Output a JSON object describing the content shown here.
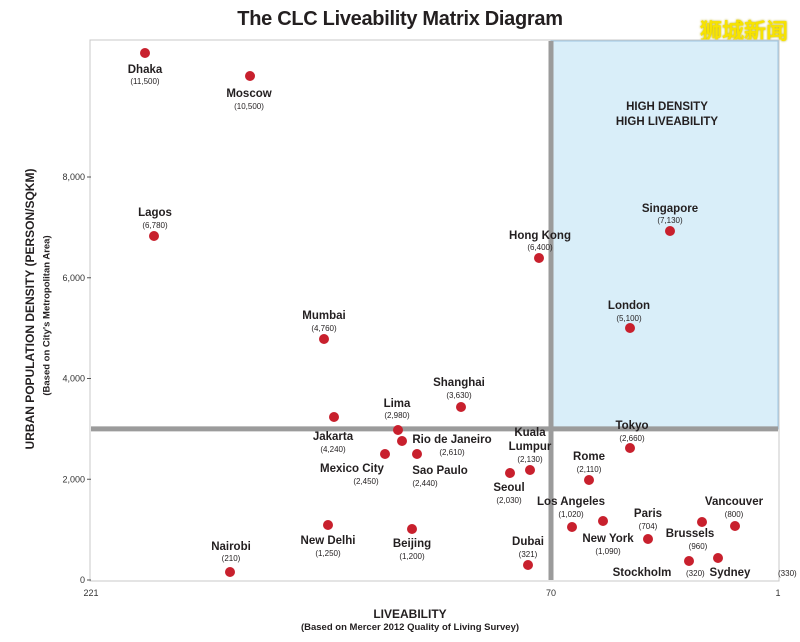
{
  "watermark": "狮城新闻",
  "chart_data": {
    "type": "scatter",
    "title": "The CLC Liveability Matrix Diagram",
    "ylabel": "URBAN POPULATION DENSITY (PERSON/SQKM)",
    "ylabel_sub": "(Based on City's Metropolitan Area)",
    "xlabel": "LIVEABILITY",
    "xlabel_sub": "(Based on Mercer 2012 Quality of Living Survey)",
    "x_axis": {
      "scale": "rank",
      "reversed": true,
      "range": [
        221,
        1
      ],
      "ticks": [
        "221",
        "70",
        "1"
      ]
    },
    "y_axis": {
      "range": [
        0,
        10700
      ],
      "ticks": [
        "0",
        "2,000",
        "4,000",
        "6,000",
        "8,000"
      ]
    },
    "quadrant_label": [
      "HIGH DENSITY",
      "HIGH LIVEABILITY"
    ],
    "divider": {
      "x_rank": 70,
      "y_density": 3000
    },
    "colors": {
      "point": "#c8202d",
      "quadrant": "#d9eef9",
      "divider": "#9b9b9b"
    },
    "points": [
      {
        "name": "Dhaka",
        "value": "(11,500)"
      },
      {
        "name": "Moscow",
        "value": "(10,500)"
      },
      {
        "name": "Lagos",
        "value": "(6,780)"
      },
      {
        "name": "Mumbai",
        "value": "(4,760)"
      },
      {
        "name": "Shanghai",
        "value": "(3,630)"
      },
      {
        "name": "Lima",
        "value": "(2,980)"
      },
      {
        "name": "Jakarta",
        "value": "(4,240)"
      },
      {
        "name": "Rio de Janeiro",
        "value": "(2,610)"
      },
      {
        "name": "Mexico City",
        "value": "(2,450)"
      },
      {
        "name": "Sao Paulo",
        "value": "(2,440)"
      },
      {
        "name": "Hong Kong",
        "value": "(6,400)"
      },
      {
        "name": "Singapore",
        "value": "(7,130)"
      },
      {
        "name": "London",
        "value": "(5,100)"
      },
      {
        "name": "Kuala Lumpur",
        "value": "(2,130)"
      },
      {
        "name": "Seoul",
        "value": "(2,030)"
      },
      {
        "name": "Tokyo",
        "value": "(2,660)"
      },
      {
        "name": "Rome",
        "value": "(2,110)"
      },
      {
        "name": "Los Angeles",
        "value": "(1,020)"
      },
      {
        "name": "New York",
        "value": "(1,090)"
      },
      {
        "name": "Paris",
        "value": "(704)"
      },
      {
        "name": "Vancouver",
        "value": "(800)"
      },
      {
        "name": "Brussels",
        "value": "(960)"
      },
      {
        "name": "Stockholm",
        "value": "(320)"
      },
      {
        "name": "Sydney",
        "value": "(330)"
      },
      {
        "name": "New Delhi",
        "value": "(1,250)"
      },
      {
        "name": "Beijing",
        "value": "(1,200)"
      },
      {
        "name": "Nairobi",
        "value": "(210)"
      },
      {
        "name": "Dubai",
        "value": "(321)"
      }
    ]
  }
}
